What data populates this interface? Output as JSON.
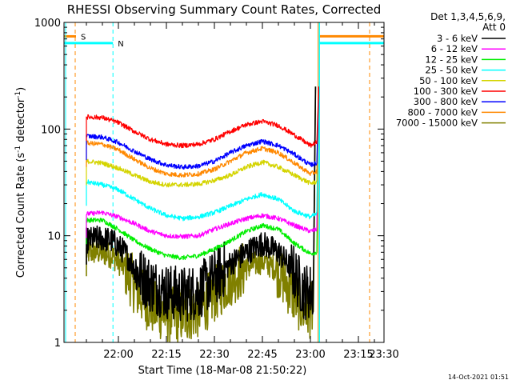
{
  "chart_data": {
    "type": "line",
    "title": "RHESSI Observing Summary Count Rates, Corrected",
    "xlabel": "Start Time (18-Mar-08 21:50:22)",
    "ylabel_main": "Corrected Count Rate (s",
    "ylabel_sup1": "-1",
    "ylabel_mid": " detector",
    "ylabel_sup2": "-1",
    "ylabel_end": ")",
    "yscale": "log",
    "ylim": [
      1,
      1000
    ],
    "xlim_minutes": [
      -7,
      93
    ],
    "x_ticks": [
      {
        "m": 10,
        "label": "22:00"
      },
      {
        "m": 25,
        "label": "22:15"
      },
      {
        "m": 40,
        "label": "22:30"
      },
      {
        "m": 55,
        "label": "22:45"
      },
      {
        "m": 70,
        "label": "23:00"
      },
      {
        "m": 85,
        "label": "23:15"
      },
      {
        "m": 100,
        "label": "23:30"
      }
    ],
    "y_ticks": [
      {
        "v": 1,
        "label": "1"
      },
      {
        "v": 10,
        "label": "10"
      },
      {
        "v": 100,
        "label": "100"
      },
      {
        "v": 1000,
        "label": "1000"
      }
    ],
    "legend": {
      "header1": "Det 1,3,4,5,6,9,",
      "header2": "Att 0",
      "placement": "right"
    },
    "series": [
      {
        "name": "3 - 6 keV",
        "color": "#000000",
        "x": [
          0,
          4,
          8,
          12,
          16,
          20,
          25,
          30,
          35,
          40,
          45,
          50,
          55,
          60,
          64,
          68,
          71
        ],
        "values": [
          9,
          9.5,
          9,
          7,
          4.5,
          3.5,
          3,
          2.8,
          3,
          4,
          5.5,
          7,
          8.5,
          7,
          5,
          3,
          3
        ]
      },
      {
        "name": "6 - 12 keV",
        "color": "#ff00ff",
        "x": [
          0,
          5,
          10,
          15,
          20,
          25,
          30,
          35,
          40,
          45,
          50,
          55,
          60,
          65,
          70,
          72
        ],
        "values": [
          16,
          16.5,
          15,
          13,
          11,
          10,
          9.8,
          10,
          11.5,
          13,
          14.5,
          15.5,
          14.5,
          12.5,
          11,
          11.5
        ]
      },
      {
        "name": "12 - 25 keV",
        "color": "#00ee00",
        "x": [
          0,
          5,
          10,
          15,
          20,
          25,
          30,
          35,
          40,
          45,
          50,
          55,
          60,
          65,
          70,
          72
        ],
        "values": [
          14,
          14,
          11.5,
          9,
          7.5,
          6.5,
          6.2,
          6.5,
          7.5,
          9,
          11,
          12.5,
          11.5,
          8.5,
          6.8,
          7
        ]
      },
      {
        "name": "25 - 50 keV",
        "color": "#00ffff",
        "x": [
          0,
          5,
          10,
          15,
          20,
          25,
          30,
          35,
          40,
          45,
          50,
          55,
          60,
          65,
          70,
          72
        ],
        "values": [
          32,
          30,
          27,
          22,
          18,
          15.5,
          14.5,
          15,
          16.5,
          19,
          22,
          24.5,
          22,
          17,
          15,
          16
        ]
      },
      {
        "name": "50 - 100 keV",
        "color": "#d4d400",
        "x": [
          0,
          5,
          10,
          15,
          20,
          25,
          30,
          35,
          40,
          45,
          50,
          55,
          60,
          65,
          70,
          72
        ],
        "values": [
          50,
          48,
          43,
          37,
          32,
          30,
          30,
          30.5,
          33,
          37,
          44,
          49,
          44,
          37,
          31,
          32
        ]
      },
      {
        "name": "100 - 300 keV",
        "color": "#ff0000",
        "x": [
          0,
          5,
          10,
          15,
          20,
          25,
          30,
          35,
          40,
          45,
          50,
          55,
          60,
          65,
          70,
          72
        ],
        "values": [
          130,
          128,
          115,
          95,
          80,
          72,
          70,
          72,
          80,
          95,
          110,
          118,
          108,
          88,
          70,
          75
        ]
      },
      {
        "name": "300 - 800 keV",
        "color": "#0000ff",
        "x": [
          0,
          5,
          10,
          15,
          20,
          25,
          30,
          35,
          40,
          45,
          50,
          55,
          60,
          65,
          70,
          72
        ],
        "values": [
          86,
          84,
          75,
          62,
          52,
          46,
          44,
          45,
          50,
          60,
          70,
          77,
          70,
          58,
          46,
          48
        ]
      },
      {
        "name": "800 - 7000 keV",
        "color": "#ff8800",
        "x": [
          0,
          5,
          10,
          15,
          20,
          25,
          30,
          35,
          40,
          45,
          50,
          55,
          60,
          65,
          70,
          72
        ],
        "values": [
          74,
          72,
          64,
          52,
          43,
          38,
          37,
          38,
          42,
          50,
          60,
          66,
          60,
          48,
          38,
          40
        ]
      },
      {
        "name": "7000 - 15000 keV",
        "color": "#808000",
        "x": [
          0,
          4,
          8,
          12,
          16,
          20,
          25,
          30,
          35,
          40,
          45,
          50,
          55,
          60,
          64,
          68,
          71
        ],
        "values": [
          7,
          7,
          6.5,
          5,
          3,
          2.2,
          1.8,
          1.8,
          2,
          2.8,
          4,
          5,
          5.8,
          4.8,
          3,
          2,
          2
        ]
      }
    ],
    "flag_labels": {
      "saa": "S",
      "night": "N"
    }
  },
  "footer": {
    "date": "14-Oct-2021 01:51"
  }
}
